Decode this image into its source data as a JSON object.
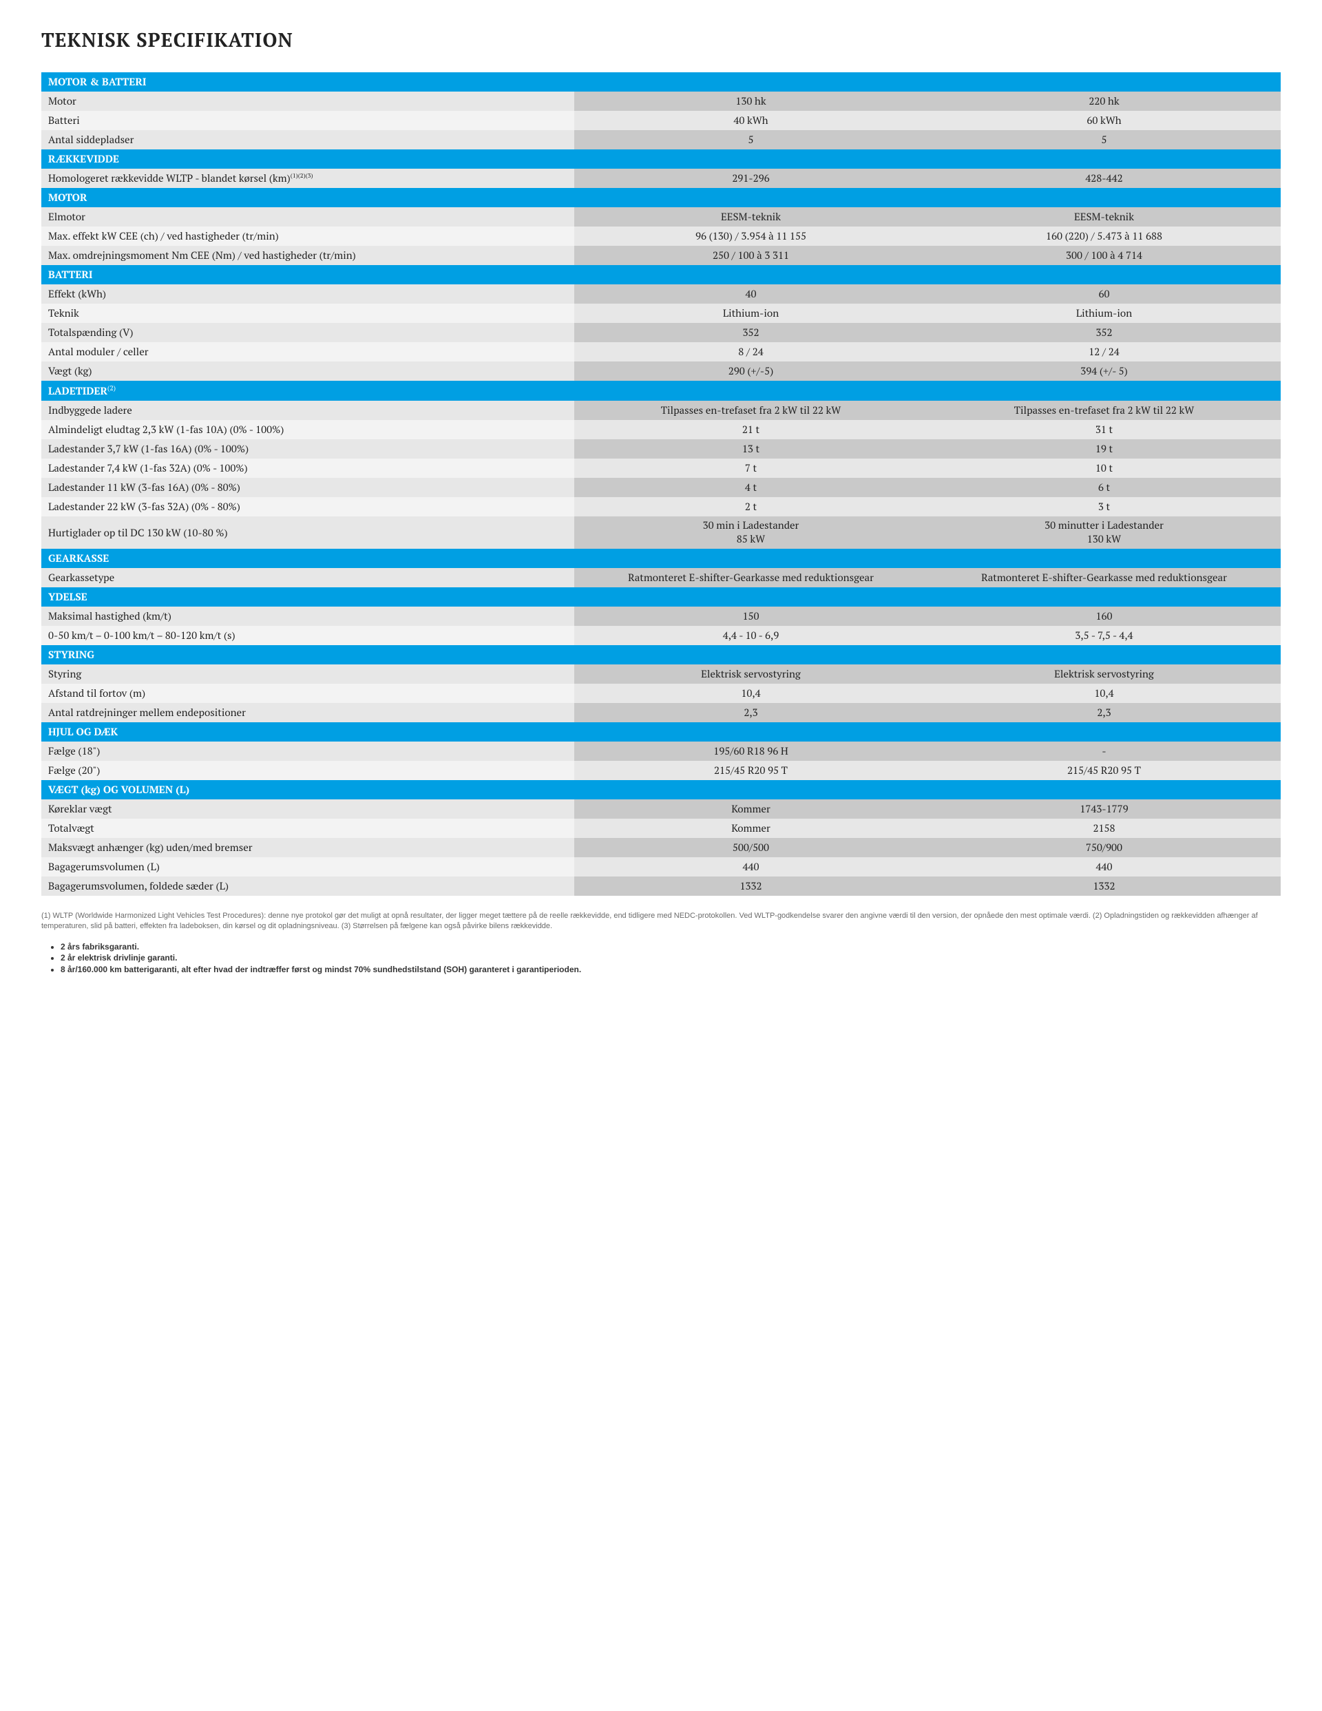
{
  "title": "TEKNISK SPECIFIKATION",
  "colors": {
    "header_bg": "#009fe3",
    "header_text": "#ffffff",
    "row_val_dark": "#c9c9c9",
    "row_val_light": "#e7e7e7",
    "row_label_dark": "#e7e7e7",
    "row_label_light": "#f3f3f3",
    "page_bg": "#ffffff",
    "text": "#222222",
    "footnote_text": "#6a6a6a"
  },
  "typography": {
    "title_size_pt": 21,
    "body_size_pt": 11,
    "footnote_size_pt": 8,
    "font_family": "PT Serif / Georgia (serif)"
  },
  "layout": {
    "label_col_width_pct": 43,
    "value_col_width_pct": 28.5,
    "value_columns": 2
  },
  "sections": [
    {
      "header": "MOTOR & BATTERI",
      "rows": [
        {
          "label": "Motor",
          "values": [
            "130 hk",
            "220 hk"
          ]
        },
        {
          "label": "Batteri",
          "values": [
            "40 kWh",
            "60 kWh"
          ]
        },
        {
          "label": "Antal siddepladser",
          "values": [
            "5",
            "5"
          ]
        }
      ]
    },
    {
      "header": "RÆKKEVIDDE",
      "rows": [
        {
          "label": "Homologeret rækkevidde WLTP - blandet kørsel (km)",
          "label_sup": "(1)(2)(3)",
          "values": [
            "291-296",
            "428-442"
          ]
        }
      ]
    },
    {
      "header": "MOTOR",
      "rows": [
        {
          "label": "Elmotor",
          "values": [
            "EESM-teknik",
            "EESM-teknik"
          ]
        },
        {
          "label": "Max. effekt kW CEE (ch) / ved hastigheder (tr/min)",
          "values": [
            "96 (130) / 3.954 à 11 155",
            "160 (220) / 5.473 à 11 688"
          ]
        },
        {
          "label": "Max. omdrejningsmoment Nm CEE (Nm) / ved hastigheder (tr/min)",
          "values": [
            "250 / 100 à 3 311",
            "300 / 100 à 4 714"
          ]
        }
      ]
    },
    {
      "header": "BATTERI",
      "rows": [
        {
          "label": "Effekt (kWh)",
          "values": [
            "40",
            "60"
          ]
        },
        {
          "label": "Teknik",
          "values": [
            "Lithium-ion",
            "Lithium-ion"
          ]
        },
        {
          "label": "Totalspænding (V)",
          "values": [
            "352",
            "352"
          ]
        },
        {
          "label": "Antal moduler / celler",
          "values": [
            "8 / 24",
            "12 / 24"
          ]
        },
        {
          "label": "Vægt (kg)",
          "values": [
            "290 (+/-5)",
            "394 (+/- 5)"
          ]
        }
      ]
    },
    {
      "header": "LADETIDER",
      "header_sup": "(2)",
      "rows": [
        {
          "label": "Indbyggede ladere",
          "values": [
            "Tilpasses en-trefaset fra 2 kW til 22 kW",
            "Tilpasses en-trefaset fra 2 kW til 22 kW"
          ]
        },
        {
          "label": "Almindeligt eludtag 2,3 kW (1-fas 10A) (0% - 100%)",
          "values": [
            "21 t",
            "31 t"
          ]
        },
        {
          "label": "Ladestander 3,7 kW (1-fas 16A) (0% - 100%)",
          "values": [
            "13 t",
            "19 t"
          ]
        },
        {
          "label": "Ladestander 7,4 kW (1-fas 32A) (0% - 100%)",
          "values": [
            "7 t",
            "10 t"
          ]
        },
        {
          "label": "Ladestander 11 kW (3-fas 16A) (0% - 80%)",
          "values": [
            "4 t",
            "6 t"
          ]
        },
        {
          "label": "Ladestander 22 kW (3-fas 32A) (0% - 80%)",
          "values": [
            "2 t",
            "3 t"
          ]
        },
        {
          "label": "Hurtiglader op til DC 130 kW (10-80 %)",
          "values": [
            "30 min i Ladestander\n85 kW",
            "30 minutter i Ladestander\n130 kW"
          ]
        }
      ]
    },
    {
      "header": "GEARKASSE",
      "rows": [
        {
          "label": "Gearkassetype",
          "values": [
            "Ratmonteret E-shifter-Gearkasse med reduktionsgear",
            "Ratmonteret E-shifter-Gearkasse med reduktionsgear"
          ]
        }
      ]
    },
    {
      "header": "YDELSE",
      "rows": [
        {
          "label": "Maksimal hastighed (km/t)",
          "values": [
            "150",
            "160"
          ]
        },
        {
          "label": "0-50 km/t – 0-100 km/t – 80-120 km/t (s)",
          "values": [
            "4,4 - 10 - 6,9",
            "3,5 - 7,5 - 4,4"
          ]
        }
      ]
    },
    {
      "header": "STYRING",
      "rows": [
        {
          "label": "Styring",
          "values": [
            "Elektrisk servostyring",
            "Elektrisk servostyring"
          ]
        },
        {
          "label": "Afstand til fortov (m)",
          "values": [
            "10,4",
            "10,4"
          ]
        },
        {
          "label": "Antal ratdrejninger mellem endepositioner",
          "values": [
            "2,3",
            "2,3"
          ]
        }
      ]
    },
    {
      "header": "HJUL OG DÆK",
      "rows": [
        {
          "label": "Fælge (18\")",
          "values": [
            "195/60 R18 96 H",
            "-"
          ]
        },
        {
          "label": "Fælge (20\")",
          "values": [
            "215/45 R20 95 T",
            "215/45 R20 95 T"
          ]
        }
      ]
    },
    {
      "header": "VÆGT (kg) OG VOLUMEN (L)",
      "rows": [
        {
          "label": "Køreklar vægt",
          "values": [
            "Kommer",
            "1743-1779"
          ]
        },
        {
          "label": "Totalvægt",
          "values": [
            "Kommer",
            "2158"
          ]
        },
        {
          "label": "Maksvægt anhænger (kg) uden/med bremser",
          "values": [
            "500/500",
            "750/900"
          ]
        },
        {
          "label": "Bagagerumsvolumen (L)",
          "values": [
            "440",
            "440"
          ]
        },
        {
          "label": "Bagagerumsvolumen, foldede sæder (L)",
          "values": [
            "1332",
            "1332"
          ]
        }
      ]
    }
  ],
  "footnote": "(1) WLTP (Worldwide Harmonized Light Vehicles Test Procedures): denne nye protokol gør det muligt at opnå resultater, der ligger meget tættere på de reelle rækkevidde, end tidligere med NEDC-protokollen. Ved WLTP-godkendelse svarer den angivne værdi til den version, der opnåede den mest optimale værdi. (2) Opladningstiden og rækkevidden afhænger af temperaturen, slid på batteri, effekten fra ladeboksen, din kørsel og dit opladningsniveau. (3) Størrelsen på fælgene kan også påvirke bilens rækkevidde.",
  "bullets": [
    "2 års fabriksgaranti.",
    "2 år elektrisk drivlinje garanti.",
    "8 år/160.000 km batterigaranti, alt efter hvad der indtræffer først og mindst 70% sundhedstilstand (SOH) garanteret i garantiperioden."
  ]
}
